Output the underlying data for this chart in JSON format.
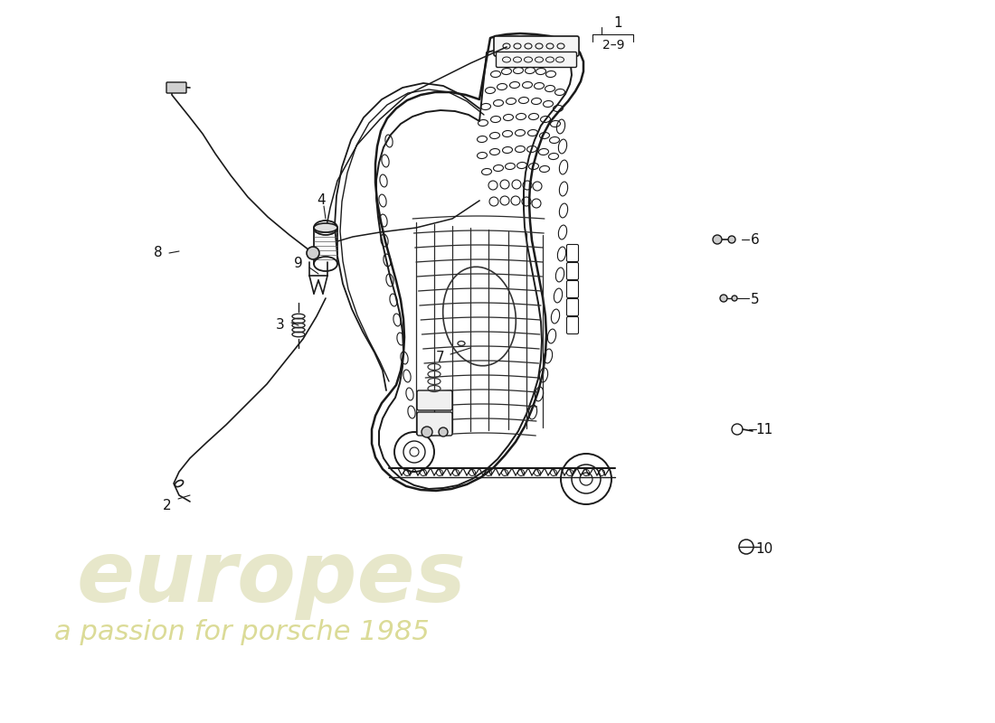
{
  "background_color": "#ffffff",
  "line_color": "#1a1a1a",
  "watermark_text1": "europes",
  "watermark_text2": "a passion for porsche 1985",
  "watermark_color": "#d4d4a0",
  "figsize": [
    11.0,
    8.0
  ],
  "dpi": 100
}
